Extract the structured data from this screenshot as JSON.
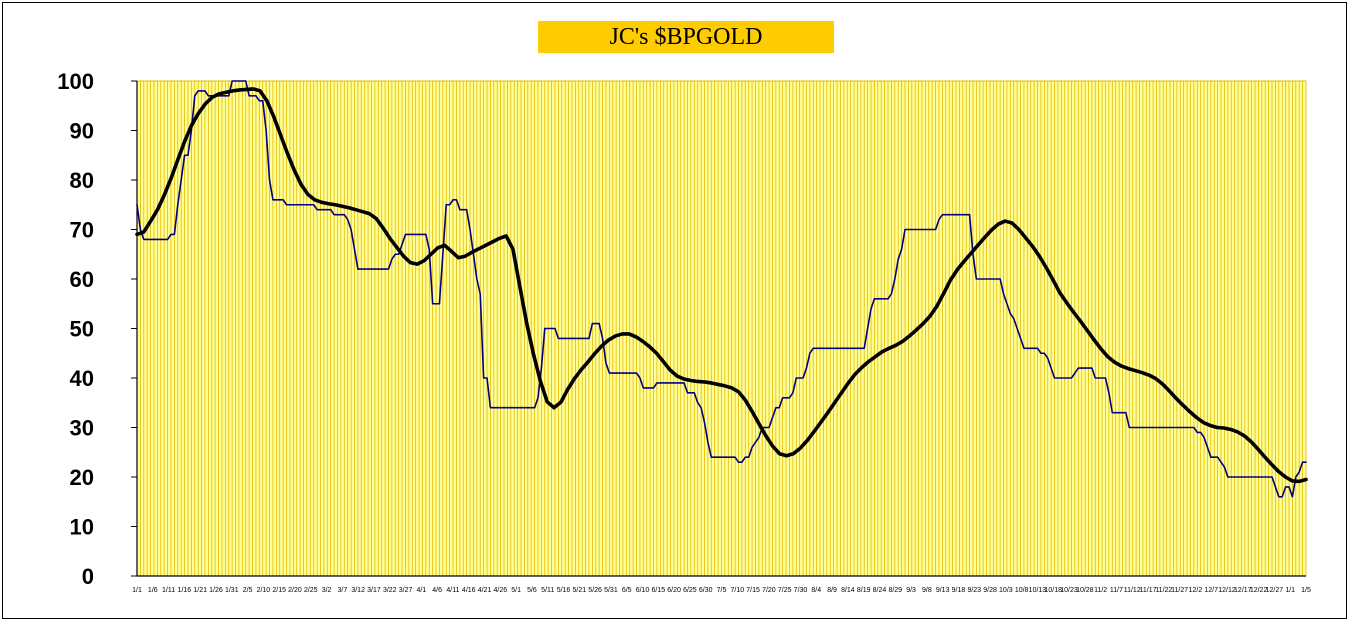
{
  "chart_data": {
    "type": "line",
    "title": "JC's $BPGOLD",
    "xlabel": "",
    "ylabel": "",
    "ylim": [
      0,
      100
    ],
    "yticks": [
      0,
      10,
      20,
      30,
      40,
      50,
      60,
      70,
      80,
      90,
      100
    ],
    "grid": true,
    "legend": "none",
    "colors": {
      "plot_bg": "#ffff99",
      "gridline": "#e6b800",
      "title_bg": "#ffcc00",
      "series_raw": "#000080",
      "series_smooth": "#000000"
    },
    "xtick_labels": [
      "1/1",
      "1/6",
      "1/11",
      "1/16",
      "1/21",
      "1/26",
      "1/31",
      "2/5",
      "2/10",
      "2/15",
      "2/20",
      "2/25",
      "3/2",
      "3/7",
      "3/12",
      "3/17",
      "3/22",
      "3/27",
      "4/1",
      "4/6",
      "4/11",
      "4/16",
      "4/21",
      "4/26",
      "5/1",
      "5/6",
      "5/11",
      "5/16",
      "5/21",
      "5/26",
      "5/31",
      "6/5",
      "6/10",
      "6/15",
      "6/20",
      "6/25",
      "6/30",
      "7/5",
      "7/10",
      "7/15",
      "7/20",
      "7/25",
      "7/30",
      "8/4",
      "8/9",
      "8/14",
      "8/19",
      "8/24",
      "8/29",
      "9/3",
      "9/8",
      "9/13",
      "9/18",
      "9/23",
      "9/28",
      "10/3",
      "10/8",
      "10/13",
      "10/18",
      "10/23",
      "10/28",
      "11/2",
      "11/7",
      "11/12",
      "11/17",
      "11/22",
      "11/27",
      "12/2",
      "12/7",
      "12/12",
      "12/17",
      "12/22",
      "12/27",
      "1/1",
      "1/5"
    ],
    "series": [
      {
        "values": [
          75,
          70,
          68,
          68,
          68,
          68,
          68,
          68,
          68,
          68,
          69,
          69,
          75,
          80,
          85,
          85,
          90,
          97,
          98,
          98,
          98,
          97,
          97,
          97,
          97,
          97,
          97,
          97,
          100,
          100,
          100,
          100,
          100,
          97,
          97,
          97,
          96,
          96,
          90,
          80,
          76,
          76,
          76,
          76,
          75,
          75,
          75,
          75,
          75,
          75,
          75,
          75,
          75,
          74,
          74,
          74,
          74,
          74,
          73,
          73,
          73,
          73,
          72,
          70,
          66,
          62,
          62,
          62,
          62,
          62,
          62,
          62,
          62,
          62,
          62,
          64,
          65,
          65,
          67,
          69,
          69,
          69,
          69,
          69,
          69,
          69,
          66,
          55,
          55,
          55,
          65,
          75,
          75,
          76,
          76,
          74,
          74,
          74,
          70,
          65,
          60,
          57,
          40,
          40,
          34,
          34,
          34,
          34,
          34,
          34,
          34,
          34,
          34,
          34,
          34,
          34,
          34,
          34,
          36,
          42,
          50,
          50,
          50,
          50,
          48,
          48,
          48,
          48,
          48,
          48,
          48,
          48,
          48,
          48,
          51,
          51,
          51,
          48,
          43,
          41,
          41,
          41,
          41,
          41,
          41,
          41,
          41,
          41,
          40,
          38,
          38,
          38,
          38,
          39,
          39,
          39,
          39,
          39,
          39,
          39,
          39,
          39,
          37,
          37,
          37,
          35,
          34,
          31,
          27,
          24,
          24,
          24,
          24,
          24,
          24,
          24,
          24,
          23,
          23,
          24,
          24,
          26,
          27,
          28,
          30,
          30,
          30,
          32,
          34,
          34,
          36,
          36,
          36,
          37,
          40,
          40,
          40,
          42,
          45,
          46,
          46,
          46,
          46,
          46,
          46,
          46,
          46,
          46,
          46,
          46,
          46,
          46,
          46,
          46,
          46,
          50,
          54,
          56,
          56,
          56,
          56,
          56,
          57,
          60,
          64,
          66,
          70,
          70,
          70,
          70,
          70,
          70,
          70,
          70,
          70,
          70,
          72,
          73,
          73,
          73,
          73,
          73,
          73,
          73,
          73,
          73,
          65,
          60,
          60,
          60,
          60,
          60,
          60,
          60,
          60,
          57,
          55,
          53,
          52,
          50,
          48,
          46,
          46,
          46,
          46,
          46,
          45,
          45,
          44,
          42,
          40,
          40,
          40,
          40,
          40,
          40,
          41,
          42,
          42,
          42,
          42,
          42,
          40,
          40,
          40,
          40,
          37,
          33,
          33,
          33,
          33,
          33,
          30,
          30,
          30,
          30,
          30,
          30,
          30,
          30,
          30,
          30,
          30,
          30,
          30,
          30,
          30,
          30,
          30,
          30,
          30,
          30,
          29,
          29,
          28,
          26,
          24,
          24,
          24,
          23,
          22,
          20,
          20,
          20,
          20,
          20,
          20,
          20,
          20,
          20,
          20,
          20,
          20,
          20,
          20,
          18,
          16,
          16,
          18,
          18,
          16,
          20,
          21,
          23,
          23
        ]
      },
      {
        "values": [
          69.0,
          69.5,
          71.7,
          74.0,
          77.0,
          80.4,
          84.2,
          87.9,
          91.1,
          93.5,
          95.4,
          96.7,
          97.4,
          97.7,
          98.0,
          98.2,
          98.3,
          98.4,
          98.0,
          96.0,
          92.8,
          89.1,
          85.4,
          82.0,
          79.1,
          77.1,
          76.0,
          75.5,
          75.2,
          75.0,
          74.7,
          74.4,
          74.0,
          73.6,
          73.2,
          72.2,
          70.3,
          68.2,
          66.4,
          64.6,
          63.3,
          63.0,
          63.7,
          65.0,
          66.3,
          66.8,
          65.6,
          64.3,
          64.6,
          65.4,
          66.1,
          66.8,
          67.5,
          68.2,
          68.7,
          66.0,
          58.5,
          51.1,
          44.8,
          39.4,
          35.2,
          34.0,
          35.1,
          37.7,
          39.9,
          41.7,
          43.3,
          45.0,
          46.5,
          47.7,
          48.5,
          48.9,
          48.9,
          48.3,
          47.4,
          46.3,
          45.0,
          43.3,
          41.6,
          40.4,
          39.8,
          39.5,
          39.3,
          39.2,
          39.0,
          38.7,
          38.4,
          38.0,
          37.2,
          35.5,
          33.2,
          30.7,
          28.3,
          26.2,
          24.7,
          24.3,
          24.7,
          25.8,
          27.3,
          29.1,
          31.0,
          32.9,
          34.9,
          36.9,
          38.9,
          40.7,
          42.1,
          43.3,
          44.3,
          45.3,
          46.0,
          46.6,
          47.4,
          48.5,
          49.7,
          51.0,
          52.5,
          54.5,
          57.1,
          59.8,
          61.9,
          63.6,
          65.2,
          66.8,
          68.4,
          69.9,
          71.1,
          71.7,
          71.3,
          70.0,
          68.3,
          66.6,
          64.6,
          62.3,
          59.8,
          57.2,
          55.2,
          53.3,
          51.5,
          49.6,
          47.7,
          45.9,
          44.3,
          43.2,
          42.4,
          41.9,
          41.5,
          41.1,
          40.6,
          39.9,
          38.8,
          37.4,
          35.9,
          34.5,
          33.2,
          32.0,
          31.0,
          30.4,
          30.0,
          29.9,
          29.6,
          29.1,
          28.3,
          27.1,
          25.6,
          24.0,
          22.5,
          21.1,
          20.0,
          19.2,
          19.1,
          19.5
        ]
      }
    ]
  }
}
